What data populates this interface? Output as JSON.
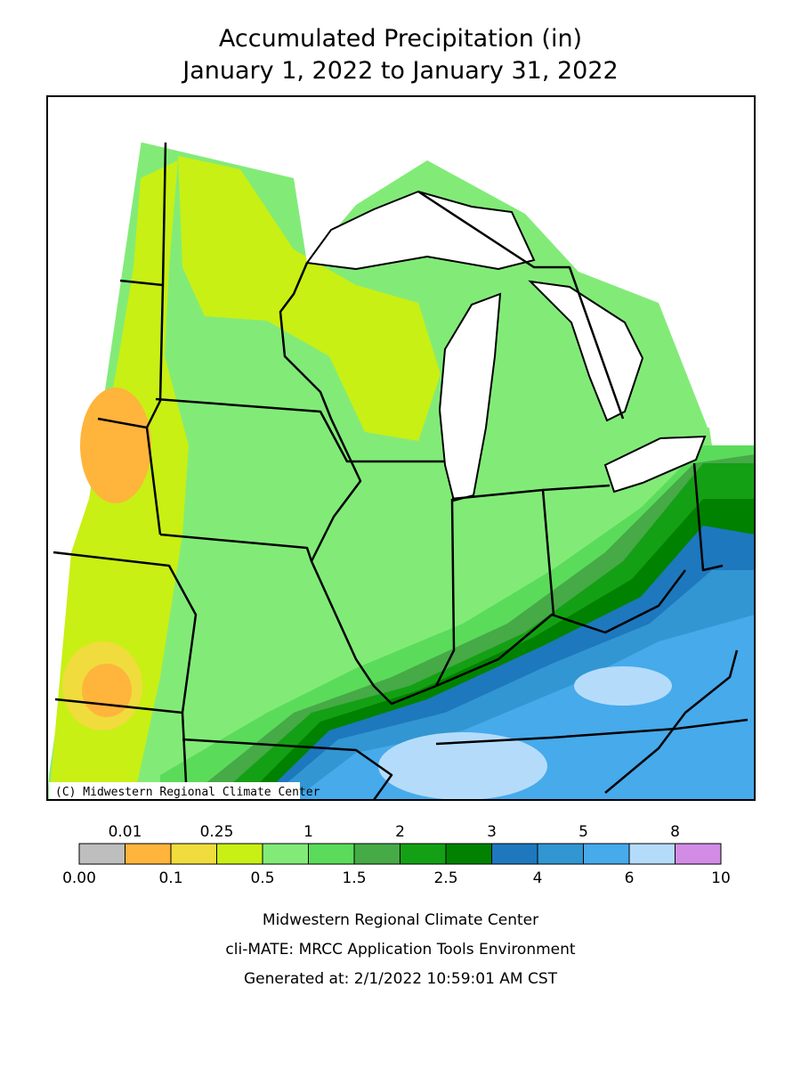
{
  "title": [
    "Accumulated Precipitation (in)",
    "January 1, 2022 to January 31, 2022"
  ],
  "map": {
    "credit": "(C) Midwestern Regional Climate Center"
  },
  "legend": {
    "labels": [
      "0.00",
      "0.01",
      "0.1",
      "0.25",
      "0.5",
      "1",
      "1.5",
      "2",
      "2.5",
      "3",
      "4",
      "5",
      "6",
      "8",
      "10"
    ],
    "colors": [
      "#bebebe",
      "#ffb43c",
      "#f0dc3c",
      "#c8f014",
      "#82eb78",
      "#5adc5a",
      "#46aa46",
      "#14a014",
      "#008200",
      "#1e78be",
      "#3296d2",
      "#46aaeb",
      "#b4dcfa",
      "#d28ce6"
    ]
  },
  "footer": [
    "Midwestern Regional Climate Center",
    "cli-MATE: MRCC Application Tools Environment",
    "Generated at: 2/1/2022 10:59:01 AM CST"
  ]
}
